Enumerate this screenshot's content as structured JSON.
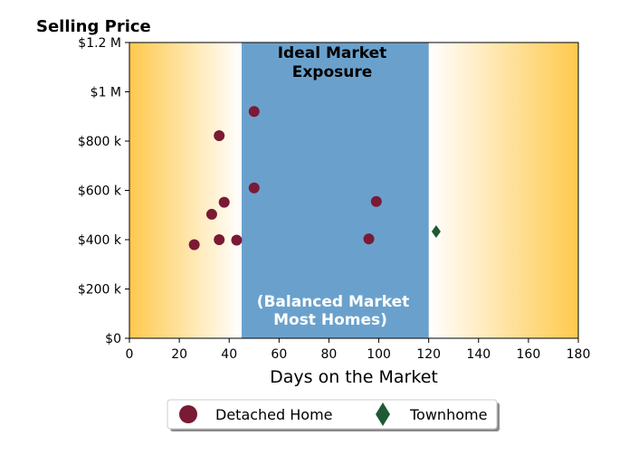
{
  "chart_data": {
    "type": "scatter",
    "ylabel": "Selling Price",
    "xlabel": "Days on the Market",
    "xlim": [
      0,
      180
    ],
    "ylim": [
      0,
      1200000
    ],
    "x_ticks": [
      0,
      20,
      40,
      60,
      80,
      100,
      120,
      140,
      160,
      180
    ],
    "x_tick_labels": [
      "0",
      "20",
      "40",
      "60",
      "80",
      "100",
      "120",
      "140",
      "160",
      "180"
    ],
    "y_ticks": [
      0,
      200000,
      400000,
      600000,
      800000,
      1000000,
      1200000
    ],
    "y_tick_labels": [
      "$0",
      "$200 k",
      "$400 k",
      "$600 k",
      "$800 k",
      "$1 M",
      "$1.2 M"
    ],
    "grid": false,
    "background_gradient": {
      "edge_color": "#ffc94d",
      "center_color": "#ffffff"
    },
    "ideal_band": {
      "x_range": [
        45,
        120
      ],
      "color": "#6aa1cc",
      "top_label_lines": [
        "Ideal Market",
        "Exposure"
      ],
      "bottom_label_lines": [
        "(Balanced Market",
        "Most Homes)"
      ]
    },
    "series": [
      {
        "name": "Detached Home",
        "marker": "circle",
        "color": "#7a1a35",
        "points": [
          {
            "x": 26,
            "y": 380000
          },
          {
            "x": 33,
            "y": 503000
          },
          {
            "x": 36,
            "y": 400000
          },
          {
            "x": 36,
            "y": 822000
          },
          {
            "x": 38,
            "y": 552000
          },
          {
            "x": 43,
            "y": 398000
          },
          {
            "x": 50,
            "y": 920000
          },
          {
            "x": 50,
            "y": 610000
          },
          {
            "x": 96,
            "y": 403000
          },
          {
            "x": 99,
            "y": 555000
          }
        ]
      },
      {
        "name": "Townhome",
        "marker": "diamond",
        "color": "#1e5a34",
        "points": [
          {
            "x": 123,
            "y": 433000
          }
        ]
      }
    ],
    "legend_position": "bottom-center"
  }
}
